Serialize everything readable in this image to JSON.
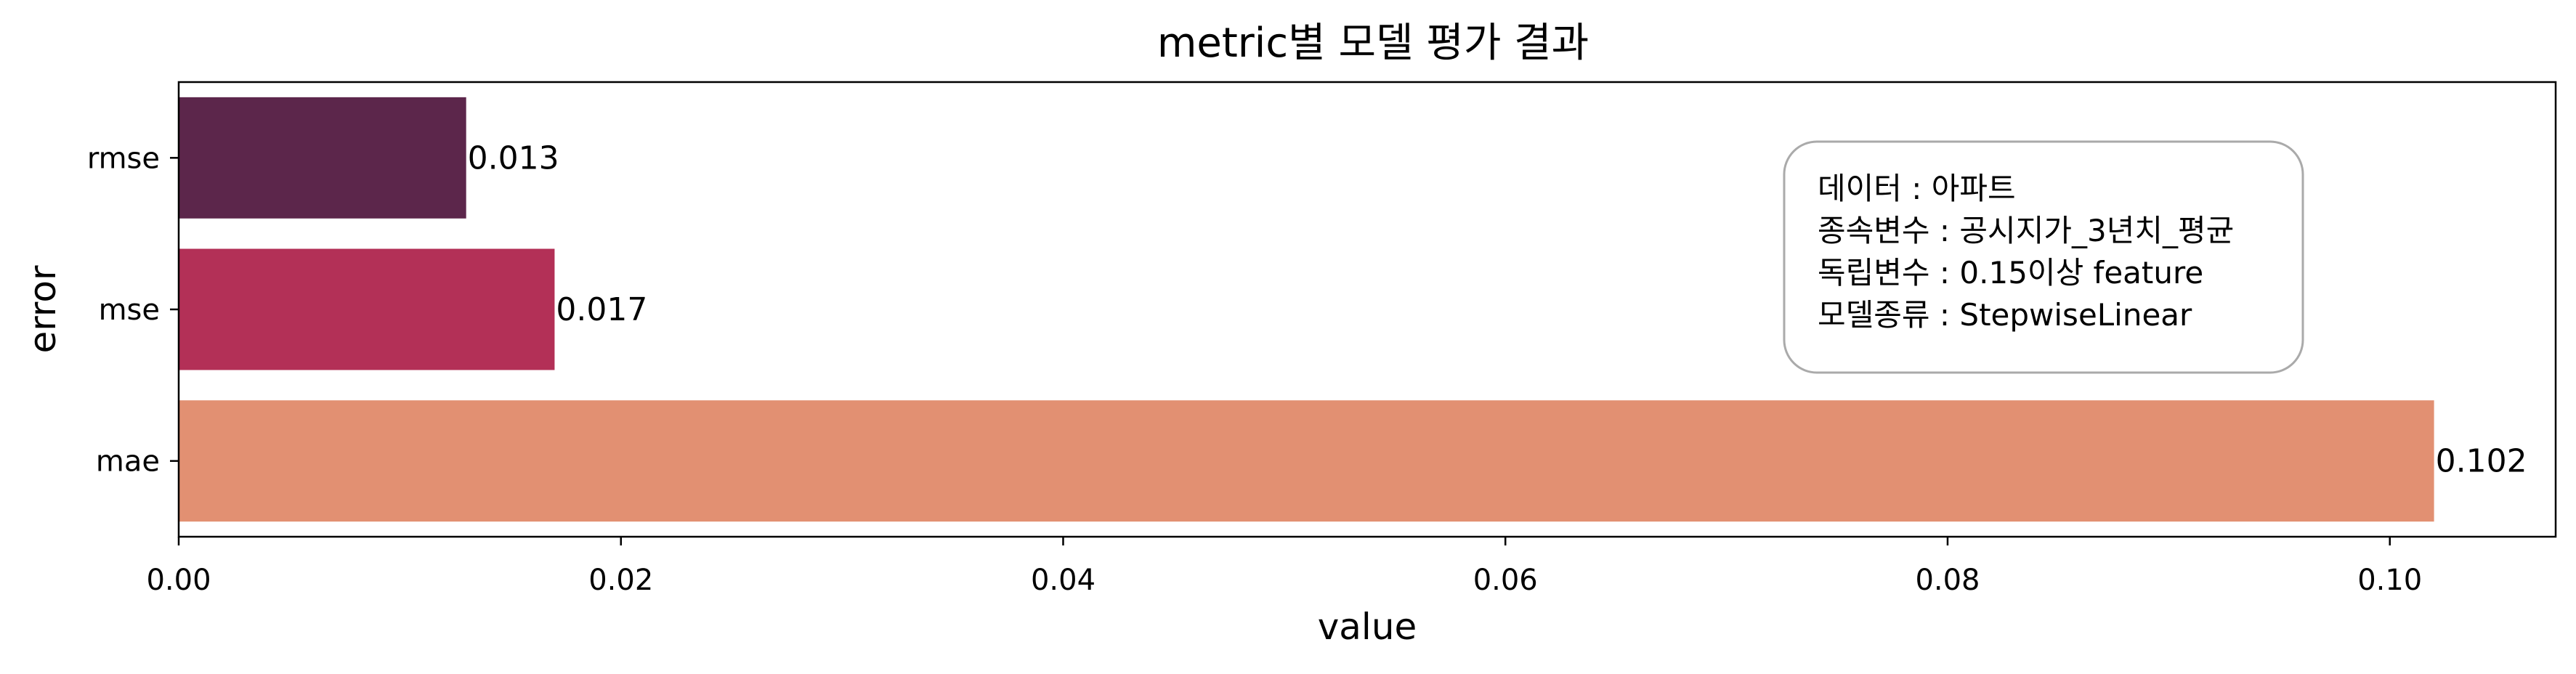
{
  "chart_data": {
    "type": "bar",
    "orientation": "horizontal",
    "title": "metric별 모델 평가 결과",
    "xlabel": "value",
    "ylabel": "error",
    "categories": [
      "rmse",
      "mse",
      "mae"
    ],
    "values": [
      0.013,
      0.017,
      0.102
    ],
    "value_labels": [
      "0.013",
      "0.017",
      "0.102"
    ],
    "xlim": [
      0,
      0.1075
    ],
    "xticks": [
      0.0,
      0.02,
      0.04,
      0.06,
      0.08,
      0.1
    ],
    "xtick_labels": [
      "0.00",
      "0.02",
      "0.04",
      "0.06",
      "0.08",
      "0.10"
    ],
    "colors": [
      "#5c264b",
      "#b33057",
      "#e29072"
    ],
    "grid": false,
    "annotation_box": {
      "position": "top-right",
      "lines": [
        "데이터 : 아파트",
        "종속변수 : 공시지가_3년치_평균",
        "독립변수 : 0.15이상 feature",
        "모델종류 : StepwiseLinear"
      ]
    }
  }
}
